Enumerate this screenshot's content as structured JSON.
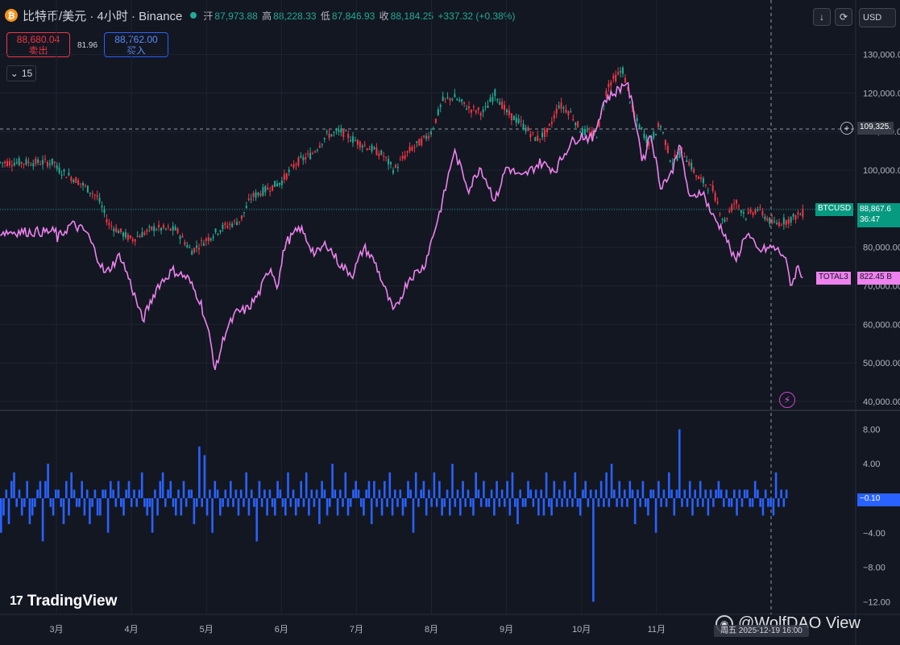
{
  "header": {
    "symbol_title": "比特币/美元 · 4小时 · Binance",
    "coin_icon": "bitcoin-icon",
    "open_label": "开",
    "open_value": "87,973.88",
    "high_label": "高",
    "high_value": "88,228.33",
    "low_label": "低",
    "low_value": "87,846.93",
    "close_label": "收",
    "close_value": "88,184.25",
    "change": "+337.32 (+0.38%)"
  },
  "trade": {
    "sell_price": "88,680.04",
    "sell_label": "卖出",
    "spread": "81.96",
    "buy_price": "88,762.00",
    "buy_label": "买入"
  },
  "interval_label": "15",
  "toolbar": {
    "currency": "USD",
    "download_icon": "arrow-down-icon",
    "refresh_icon": "refresh-icon"
  },
  "price_labels": {
    "crosshair_price": "109,325.",
    "btc_name": "BTCUSD",
    "btc_price": "88,867.6",
    "btc_timer": "36:47",
    "total3_name": "TOTAL3",
    "total3_value": "822.45 B",
    "osc_value": "−0.10"
  },
  "colors": {
    "bg": "#131722",
    "up": "#22ab94",
    "down": "#f23645",
    "total3": "#ee82ee",
    "osc": "#2962ff",
    "btc_label": "#089981"
  },
  "watermark": {
    "brand": "TradingView",
    "credit": "@WolfDAO View",
    "date": "周五 2025-12-19   16:00"
  },
  "chart_data": [
    {
      "type": "line",
      "title": "比特币/美元 · 4小时 · Binance",
      "x": [
        "3月",
        "4月",
        "5月",
        "6月",
        "7月",
        "8月",
        "9月",
        "10月",
        "11月"
      ],
      "yticks": [
        "40,000.00",
        "50,000.00",
        "60,000.00",
        "70,000.00",
        "80,000.00",
        "90,000.00",
        "100,000.00",
        "110,000.00",
        "120,000.00",
        "130,000.00"
      ],
      "ylim": [
        40000,
        132000
      ],
      "series": [
        {
          "name": "BTCUSD",
          "style": "candles",
          "points": [
            [
              0,
              100500
            ],
            [
              0.3,
              97000
            ],
            [
              0.55,
              93000
            ],
            [
              0.7,
              86000
            ],
            [
              0.85,
              84000
            ],
            [
              1,
              82000
            ],
            [
              1.3,
              85000
            ],
            [
              1.6,
              84500
            ],
            [
              1.8,
              79000
            ],
            [
              2,
              82000
            ],
            [
              2.2,
              85000
            ],
            [
              2.45,
              87000
            ],
            [
              2.6,
              93000
            ],
            [
              2.8,
              95000
            ],
            [
              3,
              97000
            ],
            [
              3.2,
              102000
            ],
            [
              3.4,
              104000
            ],
            [
              3.6,
              109000
            ],
            [
              3.8,
              110000
            ],
            [
              3.95,
              108000
            ],
            [
              4.1,
              106500
            ],
            [
              4.35,
              104000
            ],
            [
              4.5,
              100000
            ],
            [
              4.7,
              105000
            ],
            [
              4.9,
              108000
            ],
            [
              5,
              110000
            ],
            [
              5.15,
              118000
            ],
            [
              5.3,
              119000
            ],
            [
              5.5,
              116000
            ],
            [
              5.7,
              115000
            ],
            [
              5.85,
              120000
            ],
            [
              6,
              115000
            ],
            [
              6.2,
              112000
            ],
            [
              6.4,
              108000
            ],
            [
              6.55,
              110000
            ],
            [
              6.7,
              117000
            ],
            [
              6.85,
              115000
            ],
            [
              7.0,
              110000
            ],
            [
              7.2,
              109000
            ],
            [
              7.35,
              122000
            ],
            [
              7.55,
              126000
            ],
            [
              7.7,
              114000
            ],
            [
              7.9,
              107000
            ],
            [
              8.05,
              112000
            ],
            [
              8.2,
              102000
            ],
            [
              8.35,
              105000
            ],
            [
              8.55,
              98000
            ],
            [
              8.75,
              95000
            ],
            [
              8.9,
              86500
            ],
            [
              9.05,
              92000
            ],
            [
              9.2,
              88000
            ],
            [
              9.35,
              90000
            ],
            [
              9.55,
              86000
            ],
            [
              9.75,
              87000
            ],
            [
              9.95,
              88900
            ]
          ]
        },
        {
          "name": "TOTAL3",
          "style": "line",
          "points": [
            [
              0,
              82000
            ],
            [
              0.2,
              86000
            ],
            [
              0.4,
              84000
            ],
            [
              0.65,
              73000
            ],
            [
              0.85,
              78000
            ],
            [
              1,
              70000
            ],
            [
              1.15,
              61000
            ],
            [
              1.35,
              70000
            ],
            [
              1.55,
              74000
            ],
            [
              1.75,
              72000
            ],
            [
              1.92,
              66000
            ],
            [
              2.05,
              56000
            ],
            [
              2.12,
              48000
            ],
            [
              2.25,
              58000
            ],
            [
              2.4,
              63000
            ],
            [
              2.55,
              64000
            ],
            [
              2.7,
              68000
            ],
            [
              2.85,
              75000
            ],
            [
              2.95,
              70000
            ],
            [
              3.05,
              81000
            ],
            [
              3.25,
              85000
            ],
            [
              3.45,
              78000
            ],
            [
              3.6,
              81000
            ],
            [
              3.8,
              75000
            ],
            [
              3.95,
              73000
            ],
            [
              4.1,
              80000
            ],
            [
              4.25,
              76000
            ],
            [
              4.4,
              68000
            ],
            [
              4.5,
              63000
            ],
            [
              4.7,
              72000
            ],
            [
              4.9,
              75000
            ],
            [
              5.05,
              85000
            ],
            [
              5.15,
              92000
            ],
            [
              5.3,
              105000
            ],
            [
              5.5,
              95000
            ],
            [
              5.65,
              101000
            ],
            [
              5.85,
              92000
            ],
            [
              6,
              101000
            ],
            [
              6.2,
              98000
            ],
            [
              6.45,
              102000
            ],
            [
              6.65,
              100000
            ],
            [
              6.85,
              107000
            ],
            [
              7.0,
              109000
            ],
            [
              7.15,
              108000
            ],
            [
              7.3,
              118000
            ],
            [
              7.5,
              121000
            ],
            [
              7.6,
              123000
            ],
            [
              7.7,
              115000
            ],
            [
              7.82,
              102000
            ],
            [
              7.92,
              110000
            ],
            [
              8.05,
              96000
            ],
            [
              8.2,
              99000
            ],
            [
              8.3,
              107000
            ],
            [
              8.45,
              92000
            ],
            [
              8.6,
              95000
            ],
            [
              8.75,
              88000
            ],
            [
              8.9,
              84000
            ],
            [
              9.05,
              76000
            ],
            [
              9.2,
              84000
            ],
            [
              9.35,
              79000
            ],
            [
              9.55,
              80000
            ],
            [
              9.7,
              78000
            ],
            [
              9.8,
              70000
            ],
            [
              9.88,
              75000
            ],
            [
              9.95,
              72500
            ]
          ]
        }
      ]
    },
    {
      "type": "bar",
      "title": "",
      "yticks": [
        "8.00",
        "4.00",
        "0.00",
        "−4.00",
        "−8.00",
        "−12.00"
      ],
      "ylim": [
        -12,
        8
      ],
      "series": [
        {
          "name": "",
          "values": [
            -4,
            -2,
            1,
            -3,
            2,
            3,
            -1,
            1,
            -2,
            -1,
            2,
            -3,
            -2,
            -1,
            1,
            2,
            -5,
            2,
            4,
            -1,
            -2,
            1,
            1,
            -1,
            -3,
            2,
            -2,
            3,
            1,
            -1,
            -1,
            2,
            -2,
            1,
            -3,
            -1,
            1,
            -2,
            -2,
            1,
            1,
            -4,
            2,
            1,
            -1,
            2,
            -1,
            -2,
            1,
            2,
            -1,
            1,
            -1,
            1,
            3,
            -1,
            -2,
            -1,
            -4,
            1,
            -2,
            2,
            3,
            -1,
            1,
            2,
            -1,
            -2,
            1,
            -2,
            2,
            -1,
            1,
            1,
            -3,
            -1,
            6,
            -1,
            5,
            -2,
            1,
            -4,
            2,
            1,
            -2,
            -1,
            1,
            -1,
            2,
            -1,
            1,
            -2,
            1,
            -1,
            3,
            -2,
            1,
            -1,
            -5,
            2,
            -1,
            1,
            -2,
            1,
            -1,
            -2,
            2,
            1,
            -1,
            -2,
            3,
            -1,
            1,
            -2,
            -1,
            2,
            -1,
            3,
            -2,
            1,
            -1,
            1,
            -3,
            2,
            1,
            -2,
            -1,
            4,
            1,
            -2,
            1,
            -1,
            3,
            -2,
            -1,
            1,
            2,
            1,
            -1,
            -2,
            1,
            2,
            -3,
            2,
            -1,
            1,
            -2,
            2,
            -1,
            3,
            -2,
            1,
            -1,
            1,
            -2,
            -1,
            2,
            1,
            -4,
            3,
            -1,
            1,
            2,
            -2,
            1,
            -1,
            3,
            -1,
            2,
            -2,
            -1,
            1,
            -2,
            4,
            -1,
            1,
            -2,
            2,
            -1,
            1,
            -1,
            -2,
            3,
            1,
            -1,
            2,
            -1,
            -1,
            1,
            -2,
            2,
            -1,
            1,
            -1,
            2,
            -2,
            3,
            -1,
            -3,
            1,
            -1,
            -1,
            2,
            1,
            -1,
            1,
            -2,
            1,
            -2,
            3,
            -1,
            -2,
            2,
            -1,
            1,
            -1,
            2,
            -1,
            1,
            -1,
            3,
            -1,
            -2,
            1,
            2,
            -1,
            1,
            -12,
            1,
            -1,
            2,
            -1,
            3,
            -1,
            4,
            1,
            -1,
            2,
            -1,
            1,
            -1,
            2,
            1,
            -3,
            1,
            -1,
            2,
            -1,
            -2,
            1,
            1,
            -4,
            2,
            -1,
            1,
            -1,
            3,
            1,
            -2,
            1,
            8,
            -1,
            1,
            -1,
            2,
            -2,
            1,
            -1,
            2,
            -1,
            1,
            -2,
            1,
            -1,
            1,
            2,
            1,
            -1,
            1,
            -1,
            -1,
            1,
            -2,
            1,
            -1,
            1,
            1,
            -1,
            -1,
            2,
            1,
            -1,
            -2,
            1,
            -1,
            -1,
            -2,
            3,
            -1,
            1,
            -1,
            1
          ]
        }
      ]
    }
  ]
}
